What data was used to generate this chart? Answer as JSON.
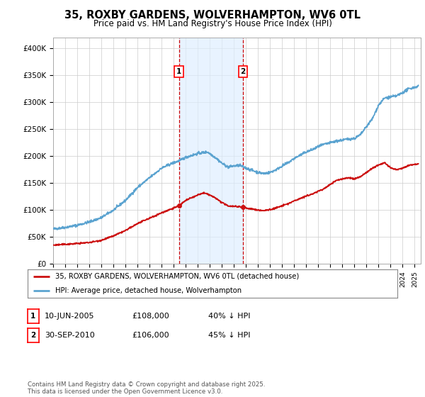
{
  "title": "35, ROXBY GARDENS, WOLVERHAMPTON, WV6 0TL",
  "subtitle": "Price paid vs. HM Land Registry's House Price Index (HPI)",
  "ylabel_ticks": [
    "£0",
    "£50K",
    "£100K",
    "£150K",
    "£200K",
    "£250K",
    "£300K",
    "£350K",
    "£400K"
  ],
  "ylim": [
    0,
    420000
  ],
  "xlim_start": 1995.0,
  "xlim_end": 2025.5,
  "hpi_color": "#5ba3d0",
  "price_color": "#cc1111",
  "marker1_x": 2005.44,
  "marker2_x": 2010.75,
  "legend_line1": "35, ROXBY GARDENS, WOLVERHAMPTON, WV6 0TL (detached house)",
  "legend_line2": "HPI: Average price, detached house, Wolverhampton",
  "table_row1": [
    "1",
    "10-JUN-2005",
    "£108,000",
    "40% ↓ HPI"
  ],
  "table_row2": [
    "2",
    "30-SEP-2010",
    "£106,000",
    "45% ↓ HPI"
  ],
  "footnote": "Contains HM Land Registry data © Crown copyright and database right 2025.\nThis data is licensed under the Open Government Licence v3.0.",
  "bg_color": "#ffffff",
  "grid_color": "#cccccc",
  "shade_color": "#ddeeff"
}
